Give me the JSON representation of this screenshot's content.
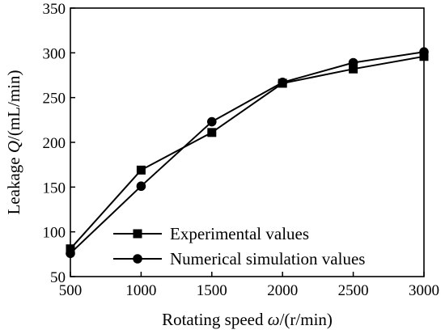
{
  "chart_data": {
    "type": "line",
    "x": [
      500,
      1000,
      1500,
      2000,
      2500,
      3000
    ],
    "xlim": [
      500,
      3000
    ],
    "ylim": [
      50,
      350
    ],
    "x_ticks": [
      "500",
      "1000",
      "1500",
      "2000",
      "2500",
      "3000"
    ],
    "y_ticks": [
      "50",
      "100",
      "150",
      "200",
      "250",
      "300",
      "350"
    ],
    "xlabel": {
      "prefix": "Rotating speed ",
      "symbol": "ω",
      "suffix": "/(r/min)"
    },
    "ylabel": {
      "prefix": "Leakage ",
      "symbol": "Q",
      "suffix": "/(mL/min)"
    },
    "grid": false,
    "legend_position": "bottom-left",
    "series": [
      {
        "name": "Experimental values",
        "marker": "square",
        "color": "#000000",
        "values": [
          81,
          169,
          211,
          266,
          282,
          296
        ]
      },
      {
        "name": "Numerical simulation values",
        "marker": "circle",
        "color": "#000000",
        "values": [
          76,
          151,
          223,
          267,
          289,
          301
        ]
      }
    ]
  }
}
